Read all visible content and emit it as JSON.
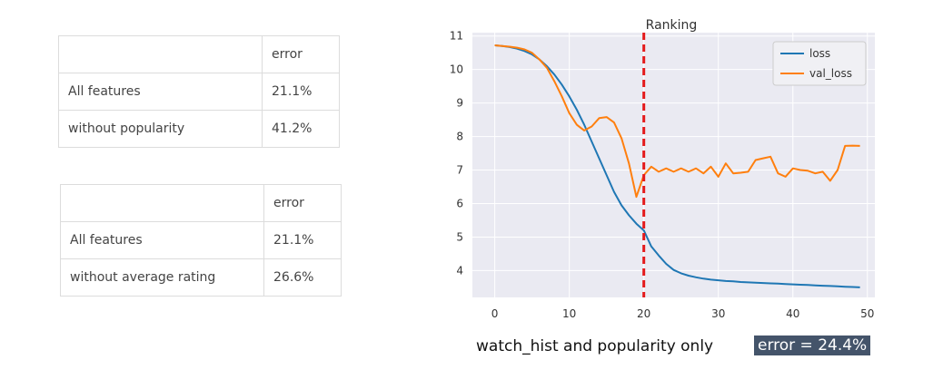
{
  "tables": [
    {
      "header": [
        "",
        "error"
      ],
      "rows": [
        [
          "All features",
          "21.1%"
        ],
        [
          "without popularity",
          "41.2%"
        ]
      ]
    },
    {
      "header": [
        "",
        "error"
      ],
      "rows": [
        [
          "All features",
          "21.1%"
        ],
        [
          "without average rating",
          "26.6%"
        ]
      ]
    }
  ],
  "chart_data": {
    "type": "line",
    "title": "Ranking",
    "xlabel": "",
    "ylabel": "",
    "xlim": [
      -3,
      51
    ],
    "ylim": [
      3.2,
      11.1
    ],
    "xticks": [
      0,
      10,
      20,
      30,
      40,
      50
    ],
    "yticks": [
      4,
      5,
      6,
      7,
      8,
      9,
      10,
      11
    ],
    "grid": true,
    "legend": "top-right",
    "vline": {
      "x": 20,
      "color": "#e41a1c",
      "style": "dashed"
    },
    "series": [
      {
        "name": "loss",
        "color": "#1f77b4",
        "x": [
          0,
          1,
          2,
          3,
          4,
          5,
          6,
          7,
          8,
          9,
          10,
          11,
          12,
          13,
          14,
          15,
          16,
          17,
          18,
          19,
          20,
          21,
          22,
          23,
          24,
          25,
          26,
          27,
          28,
          29,
          30,
          31,
          32,
          33,
          34,
          35,
          36,
          37,
          38,
          39,
          40,
          41,
          42,
          43,
          44,
          45,
          46,
          47,
          48,
          49
        ],
        "values": [
          10.72,
          10.7,
          10.67,
          10.62,
          10.55,
          10.45,
          10.3,
          10.1,
          9.85,
          9.55,
          9.2,
          8.8,
          8.35,
          7.85,
          7.35,
          6.85,
          6.35,
          5.95,
          5.65,
          5.4,
          5.2,
          4.72,
          4.45,
          4.2,
          4.02,
          3.92,
          3.85,
          3.8,
          3.76,
          3.73,
          3.71,
          3.69,
          3.68,
          3.66,
          3.65,
          3.64,
          3.63,
          3.62,
          3.61,
          3.6,
          3.59,
          3.58,
          3.57,
          3.56,
          3.55,
          3.54,
          3.53,
          3.52,
          3.51,
          3.5
        ]
      },
      {
        "name": "val_loss",
        "color": "#ff7f0e",
        "x": [
          0,
          1,
          2,
          3,
          4,
          5,
          6,
          7,
          8,
          9,
          10,
          11,
          12,
          13,
          14,
          15,
          16,
          17,
          18,
          19,
          20,
          21,
          22,
          23,
          24,
          25,
          26,
          27,
          28,
          29,
          30,
          31,
          32,
          33,
          34,
          35,
          36,
          37,
          38,
          39,
          40,
          41,
          42,
          43,
          44,
          45,
          46,
          47,
          48,
          49
        ],
        "values": [
          10.72,
          10.7,
          10.68,
          10.65,
          10.6,
          10.5,
          10.3,
          10.05,
          9.65,
          9.2,
          8.7,
          8.35,
          8.18,
          8.3,
          8.55,
          8.58,
          8.42,
          7.95,
          7.2,
          6.2,
          6.85,
          7.1,
          6.95,
          7.05,
          6.95,
          7.05,
          6.95,
          7.05,
          6.9,
          7.1,
          6.8,
          7.2,
          6.9,
          6.92,
          6.95,
          7.3,
          7.35,
          7.4,
          6.9,
          6.8,
          7.05,
          7.0,
          6.98,
          6.9,
          6.95,
          6.68,
          7.0,
          7.72,
          7.73,
          7.72
        ]
      }
    ]
  },
  "caption": {
    "text": "watch_hist and popularity only",
    "badge": "error = 24.4%"
  }
}
